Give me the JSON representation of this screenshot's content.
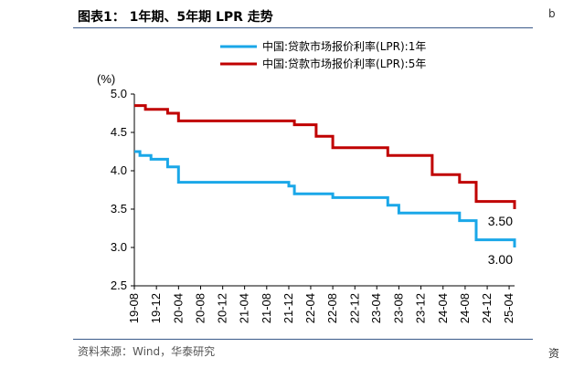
{
  "figure": {
    "title": "图表1： 1年期、5年期 LPR 走势",
    "source": "资料来源：Wind，华泰研究",
    "edge_mark_top": "b",
    "edge_mark_bottom": "资"
  },
  "chart_data": {
    "type": "line",
    "y_unit_label": "(%)",
    "ylim": [
      2.5,
      5.0
    ],
    "y_ticks": [
      "5.0",
      "4.5",
      "4.0",
      "3.5",
      "3.0",
      "2.5"
    ],
    "x_tick_labels": [
      "19-08",
      "19-12",
      "20-04",
      "20-08",
      "20-12",
      "21-04",
      "21-08",
      "21-12",
      "22-04",
      "22-08",
      "22-12",
      "23-04",
      "23-08",
      "23-12",
      "24-04",
      "24-08",
      "24-12",
      "25-04"
    ],
    "grid": false,
    "legend_position": "top",
    "series": [
      {
        "name": "中国:贷款市场报价利率(LPR):1年",
        "color": "#1aa7e8",
        "end_label": "3.00",
        "points": [
          [
            "2019-08",
            4.25
          ],
          [
            "2019-09",
            4.2
          ],
          [
            "2019-11",
            4.15
          ],
          [
            "2020-02",
            4.05
          ],
          [
            "2020-04",
            3.85
          ],
          [
            "2021-12",
            3.8
          ],
          [
            "2022-01",
            3.7
          ],
          [
            "2022-08",
            3.65
          ],
          [
            "2023-06",
            3.55
          ],
          [
            "2023-08",
            3.45
          ],
          [
            "2024-07",
            3.35
          ],
          [
            "2024-10",
            3.1
          ],
          [
            "2025-04",
            3.1
          ],
          [
            "2025-05",
            3.0
          ]
        ]
      },
      {
        "name": "中国:贷款市场报价利率(LPR):5年",
        "color": "#c00000",
        "end_label": "3.50",
        "points": [
          [
            "2019-08",
            4.85
          ],
          [
            "2019-10",
            4.8
          ],
          [
            "2020-02",
            4.75
          ],
          [
            "2020-04",
            4.65
          ],
          [
            "2022-01",
            4.6
          ],
          [
            "2022-05",
            4.45
          ],
          [
            "2022-08",
            4.3
          ],
          [
            "2023-06",
            4.2
          ],
          [
            "2024-02",
            3.95
          ],
          [
            "2024-07",
            3.85
          ],
          [
            "2024-10",
            3.6
          ],
          [
            "2025-04",
            3.6
          ],
          [
            "2025-05",
            3.5
          ]
        ]
      }
    ]
  }
}
